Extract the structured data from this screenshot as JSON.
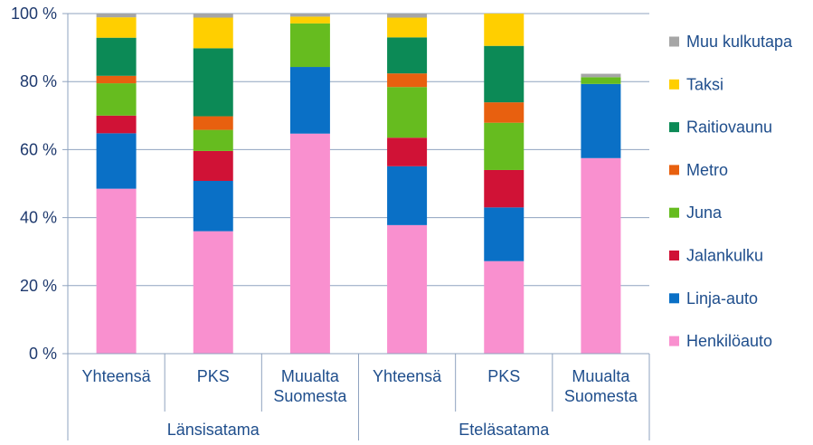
{
  "chart_data": {
    "type": "bar",
    "stacked": true,
    "percent": true,
    "categories": [
      "Yhteensä",
      "PKS",
      "Muualta Suomesta",
      "Yhteensä",
      "PKS",
      "Muualta Suomesta"
    ],
    "category_lines": [
      [
        "Yhteensä"
      ],
      [
        "PKS"
      ],
      [
        "Muualta",
        "Suomesta"
      ],
      [
        "Yhteensä"
      ],
      [
        "PKS"
      ],
      [
        "Muualta",
        "Suomesta"
      ]
    ],
    "groups": [
      {
        "label": "Länsisatama",
        "start": 0,
        "end": 2
      },
      {
        "label": "Eteläsatama",
        "start": 3,
        "end": 5
      }
    ],
    "series": [
      {
        "name": "Henkilöauto",
        "color": "#f990cf",
        "values": [
          48.5,
          36.0,
          64.7,
          37.8,
          27.2,
          57.5
        ]
      },
      {
        "name": "Linja-auto",
        "color": "#0a70c6",
        "values": [
          16.3,
          14.8,
          19.6,
          17.3,
          15.8,
          21.8
        ]
      },
      {
        "name": "Jalankulku",
        "color": "#d01236",
        "values": [
          5.2,
          8.8,
          0.0,
          8.4,
          11.0,
          0.0
        ]
      },
      {
        "name": "Juna",
        "color": "#66bc1f",
        "values": [
          9.5,
          6.2,
          12.8,
          14.9,
          13.9,
          2.0
        ]
      },
      {
        "name": "Metro",
        "color": "#e8600f",
        "values": [
          2.2,
          4.0,
          0.0,
          4.0,
          6.0,
          0.0
        ]
      },
      {
        "name": "Raitiovaunu",
        "color": "#0c8a56",
        "values": [
          11.2,
          20.0,
          0.0,
          10.6,
          16.6,
          0.0
        ]
      },
      {
        "name": "Taksi",
        "color": "#ffcf00",
        "values": [
          6.0,
          9.0,
          2.0,
          5.8,
          9.5,
          0.0
        ]
      },
      {
        "name": "Muu kulkutapa",
        "color": "#a6a6a6",
        "values": [
          1.1,
          1.2,
          0.9,
          1.2,
          0.0,
          1.0
        ]
      }
    ],
    "y_ticks": [
      "0 %",
      "20 %",
      "40 %",
      "60 %",
      "80 %",
      "100 %"
    ],
    "ylim": [
      0,
      100
    ],
    "grid": true,
    "legend_position": "right",
    "title": "",
    "xlabel": "",
    "ylabel": ""
  }
}
